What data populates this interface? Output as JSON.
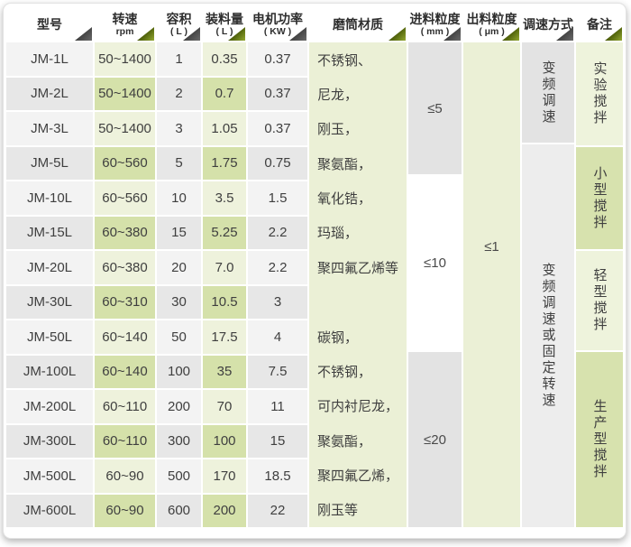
{
  "header": {
    "columns": [
      {
        "title": "型号",
        "sub": ""
      },
      {
        "title": "转速",
        "sub": "rpm"
      },
      {
        "title": "容积",
        "sub": "( L )"
      },
      {
        "title": "装料量",
        "sub": "( L )"
      },
      {
        "title": "电机功率",
        "sub": "( KW )"
      },
      {
        "title": "磨筒材质",
        "sub": ""
      },
      {
        "title": "进料粒度",
        "sub": "( mm )"
      },
      {
        "title": "出料粒度",
        "sub": "( μm )"
      },
      {
        "title": "调速方式",
        "sub": ""
      },
      {
        "title": "备注",
        "sub": ""
      }
    ]
  },
  "rows": [
    {
      "model": "JM-1L",
      "speed": "50~1400",
      "volume": "1",
      "load": "0.35",
      "power": "0.37",
      "material": "不锈钢、"
    },
    {
      "model": "JM-2L",
      "speed": "50~1400",
      "volume": "2",
      "load": "0.7",
      "power": "0.37",
      "material": "尼龙，"
    },
    {
      "model": "JM-3L",
      "speed": "50~1400",
      "volume": "3",
      "load": "1.05",
      "power": "0.37",
      "material": "刚玉，"
    },
    {
      "model": "JM-5L",
      "speed": "60~560",
      "volume": "5",
      "load": "1.75",
      "power": "0.75",
      "material": "聚氨酯，"
    },
    {
      "model": "JM-10L",
      "speed": "60~560",
      "volume": "10",
      "load": "3.5",
      "power": "1.5",
      "material": "氧化锆，"
    },
    {
      "model": "JM-15L",
      "speed": "60~380",
      "volume": "15",
      "load": "5.25",
      "power": "2.2",
      "material": "玛瑙，"
    },
    {
      "model": "JM-20L",
      "speed": "60~380",
      "volume": "20",
      "load": "7.0",
      "power": "2.2",
      "material": "聚四氟乙烯等"
    },
    {
      "model": "JM-30L",
      "speed": "60~310",
      "volume": "30",
      "load": "10.5",
      "power": "3",
      "material": ""
    },
    {
      "model": "JM-50L",
      "speed": "60~140",
      "volume": "50",
      "load": "17.5",
      "power": "4",
      "material": "碳钢，"
    },
    {
      "model": "JM-100L",
      "speed": "60~140",
      "volume": "100",
      "load": "35",
      "power": "7.5",
      "material": "不锈钢，"
    },
    {
      "model": "JM-200L",
      "speed": "60~110",
      "volume": "200",
      "load": "70",
      "power": "11",
      "material": "可内衬尼龙，"
    },
    {
      "model": "JM-300L",
      "speed": "60~110",
      "volume": "300",
      "load": "100",
      "power": "15",
      "material": "聚氨酯，"
    },
    {
      "model": "JM-500L",
      "speed": "60~90",
      "volume": "500",
      "load": "170",
      "power": "18.5",
      "material": "聚四氟乙烯，"
    },
    {
      "model": "JM-600L",
      "speed": "60~90",
      "volume": "600",
      "load": "200",
      "power": "22",
      "material": "刚玉等"
    }
  ],
  "merged": {
    "feed_size": [
      {
        "label": "≤5"
      },
      {
        "label": "≤10"
      },
      {
        "label": "≤20"
      }
    ],
    "output_size": {
      "label": "≤1"
    },
    "speed_regulation": [
      {
        "label": "变频调速"
      },
      {
        "label": "变频调速或固定转速"
      }
    ],
    "notes": [
      {
        "label": "实验搅拌"
      },
      {
        "label": "小型搅拌"
      },
      {
        "label": "轻型搅拌"
      },
      {
        "label": "生产型搅拌"
      }
    ]
  },
  "colors": {
    "row_gray_light": "#f3f3f3",
    "row_gray_dark": "#e7e7e7",
    "row_green_light": "#eef2dc",
    "row_green_dark": "#d5e1aa",
    "column_green": "#ebf0d6",
    "merged_gray": "#e3e3e3",
    "merged_gray_light": "#ededed",
    "merged_white": "#ffffff",
    "note_green_light": "#eef3dc",
    "note_green_dark": "#d7e2ae",
    "triangle_dark": "#3e3e3e",
    "triangle_olive": "#55670d"
  }
}
